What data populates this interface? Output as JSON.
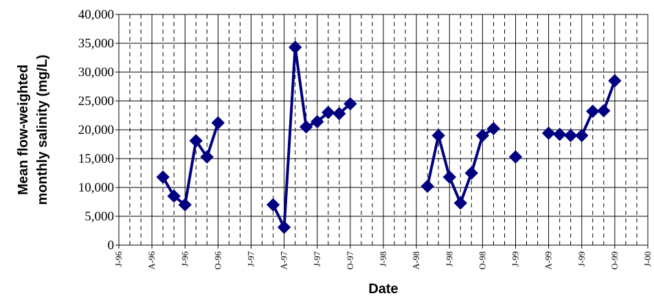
{
  "chart_data": {
    "type": "line",
    "xlabel": "Date",
    "ylabel_lines": [
      "Mean flow-weighted",
      "monthly salinity (mg/L)"
    ],
    "ylim": [
      0,
      40000
    ],
    "y_ticks": [
      0,
      5000,
      10000,
      15000,
      20000,
      25000,
      30000,
      35000,
      40000
    ],
    "y_tick_labels": [
      "0",
      "5,000",
      "10,000",
      "15,000",
      "20,000",
      "25,000",
      "30,000",
      "35,000",
      "40,000"
    ],
    "x_range": [
      "1996-01",
      "2000-01"
    ],
    "x_tick_labels": [
      "J-96",
      "A-96",
      "J-96",
      "O-96",
      "J-97",
      "A-97",
      "J-97",
      "O-97",
      "J-98",
      "A-98",
      "J-98",
      "O-98",
      "J-99",
      "A-99",
      "J-99",
      "O-99",
      "J-00"
    ],
    "grid": "major solid every 3 months, minor dashed monthly",
    "series_color": "#000080",
    "marker": "diamond",
    "segments": [
      [
        {
          "x": "1996-05",
          "y": 11800
        },
        {
          "x": "1996-06",
          "y": 8500
        },
        {
          "x": "1996-07",
          "y": 7000
        },
        {
          "x": "1996-08",
          "y": 18100
        },
        {
          "x": "1996-09",
          "y": 15300
        },
        {
          "x": "1996-10",
          "y": 21200
        }
      ],
      [
        {
          "x": "1997-03",
          "y": 7000
        },
        {
          "x": "1997-04",
          "y": 3100
        },
        {
          "x": "1997-05",
          "y": 34300
        },
        {
          "x": "1997-06",
          "y": 20500
        },
        {
          "x": "1997-07",
          "y": 21400
        },
        {
          "x": "1997-08",
          "y": 23000
        },
        {
          "x": "1997-09",
          "y": 22800
        },
        {
          "x": "1997-10",
          "y": 24500
        }
      ],
      [
        {
          "x": "1998-05",
          "y": 10200
        },
        {
          "x": "1998-06",
          "y": 19000
        },
        {
          "x": "1998-07",
          "y": 11800
        },
        {
          "x": "1998-08",
          "y": 7300
        },
        {
          "x": "1998-09",
          "y": 12500
        },
        {
          "x": "1998-10",
          "y": 19000
        },
        {
          "x": "1998-11",
          "y": 20200
        }
      ],
      [
        {
          "x": "1999-01",
          "y": 15300
        }
      ],
      [
        {
          "x": "1999-04",
          "y": 19400
        },
        {
          "x": "1999-05",
          "y": 19200
        },
        {
          "x": "1999-06",
          "y": 19000
        },
        {
          "x": "1999-07",
          "y": 19000
        },
        {
          "x": "1999-08",
          "y": 23200
        },
        {
          "x": "1999-09",
          "y": 23300
        },
        {
          "x": "1999-10",
          "y": 28500
        }
      ]
    ]
  }
}
